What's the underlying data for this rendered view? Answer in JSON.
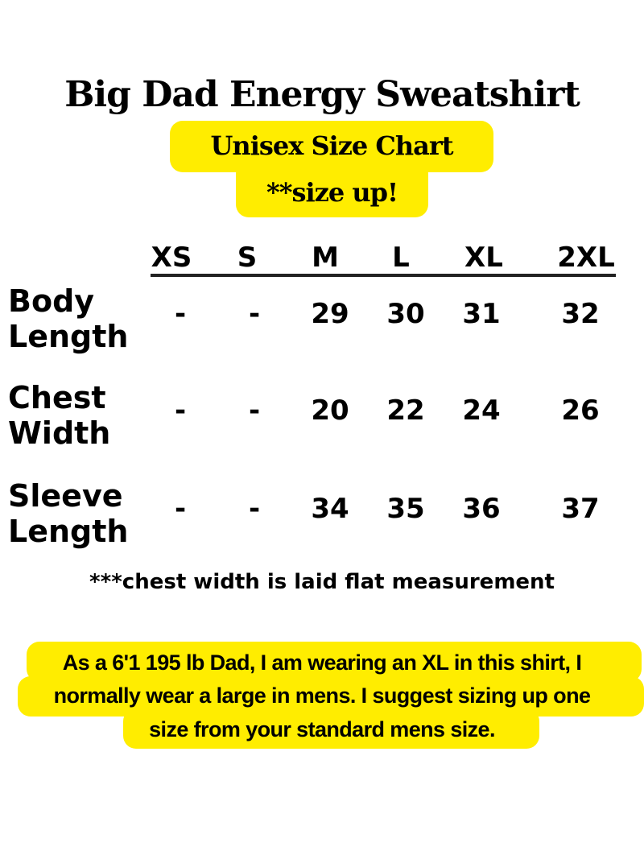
{
  "title": "Big Dad Energy Sweatshirt",
  "subtitle": "Unisex Size Chart",
  "size_up": "**size up!",
  "accent_color": "#FFED00",
  "table": {
    "sizes": [
      "XS",
      "S",
      "M",
      "L",
      "XL",
      "2XL"
    ],
    "rows": [
      {
        "label_line1": "Body",
        "label_line2": "Length",
        "values": [
          "-",
          "-",
          "29",
          "30",
          "31",
          "32"
        ]
      },
      {
        "label_line1": "Chest",
        "label_line2": "Width",
        "values": [
          "-",
          "-",
          "20",
          "22",
          "24",
          "26"
        ]
      },
      {
        "label_line1": "Sleeve",
        "label_line2": "Length",
        "values": [
          "-",
          "-",
          "34",
          "35",
          "36",
          "37"
        ]
      }
    ]
  },
  "note": "***chest width is laid flat measurement",
  "advice": {
    "line1": "As a 6'1 195 lb Dad, I am wearing an XL in this shirt, I",
    "line2": "normally wear a large in mens. I suggest sizing up one",
    "line3": "size from your standard mens size."
  }
}
